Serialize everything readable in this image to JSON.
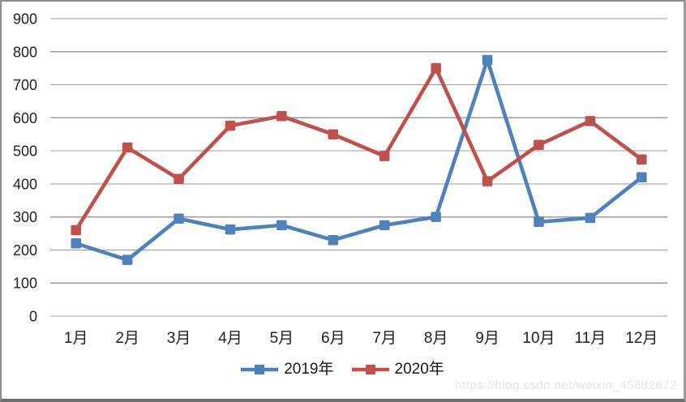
{
  "chart_data": {
    "type": "line",
    "title": "",
    "categories": [
      "1月",
      "2月",
      "3月",
      "4月",
      "5月",
      "6月",
      "7月",
      "8月",
      "9月",
      "10月",
      "11月",
      "12月"
    ],
    "series": [
      {
        "name": "2019年",
        "color": "#4F81BD",
        "values": [
          220,
          170,
          295,
          262,
          275,
          230,
          275,
          300,
          775,
          285,
          297,
          420
        ]
      },
      {
        "name": "2020年",
        "color": "#C0504D",
        "values": [
          260,
          510,
          415,
          576,
          605,
          550,
          484,
          750,
          408,
          518,
          590,
          474
        ]
      }
    ],
    "xlabel": "",
    "ylabel": "",
    "ylim": [
      0,
      900
    ],
    "yticks": [
      0,
      100,
      200,
      300,
      400,
      500,
      600,
      700,
      800,
      900
    ],
    "grid": true,
    "legend_position": "bottom",
    "marker": "square"
  },
  "colors": {
    "gridline": "#9c9c9c",
    "axis_text": "#212121",
    "background": "#ffffff",
    "border": "#8f8f8f"
  },
  "watermark": {
    "text": "https://blog.csdn.net/weixin_45882672"
  }
}
